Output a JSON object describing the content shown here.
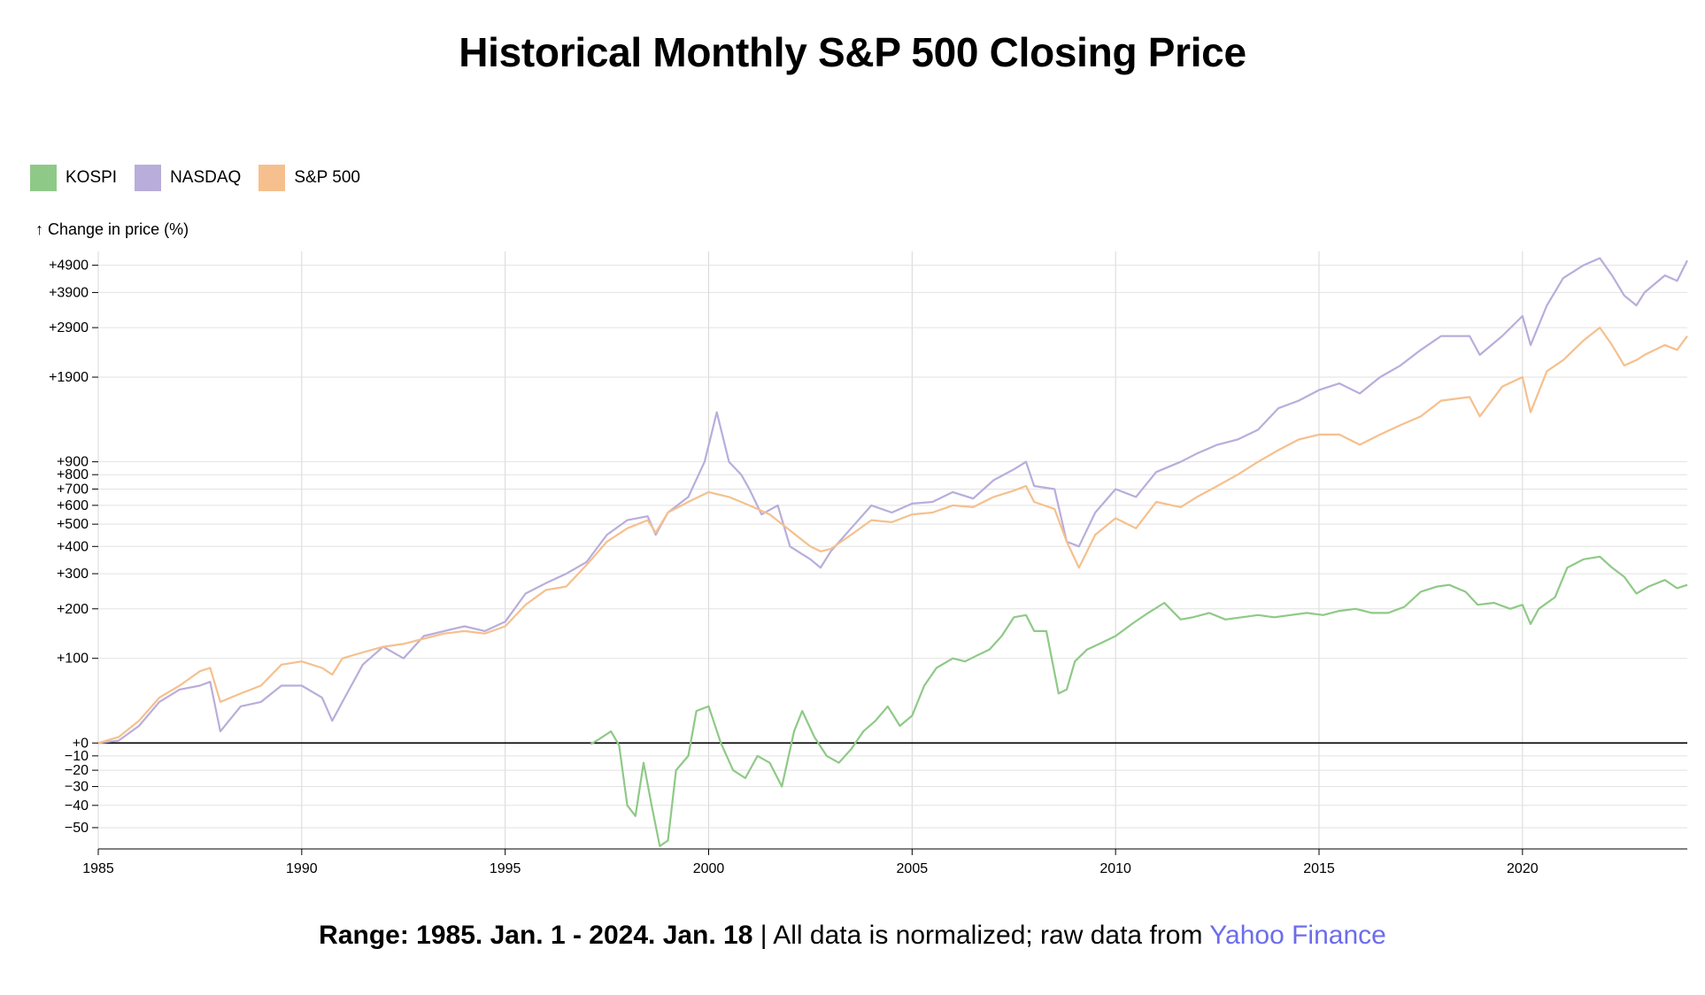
{
  "title": "Historical Monthly S&P 500 Closing Price",
  "legend": [
    {
      "name": "KOSPI",
      "color": "#8fc987"
    },
    {
      "name": "NASDAQ",
      "color": "#b9addb"
    },
    {
      "name": "S&P 500",
      "color": "#f5c08e"
    }
  ],
  "footer": {
    "range": "Range: 1985. Jan. 1 - 2024. Jan. 18",
    "separator": " | ",
    "note": "All data is normalized; raw data from ",
    "link": "Yahoo Finance"
  },
  "chart_data": {
    "type": "line",
    "title": "Historical Monthly S&P 500 Closing Price",
    "ylabel": "↑ Change in price (%)",
    "xlabel": "",
    "scale": "log",
    "xlim": [
      1985.0,
      2024.05
    ],
    "ylim": [
      -58,
      5500
    ],
    "grid": true,
    "legend_position": "top-left",
    "x_ticks": [
      1985,
      1990,
      1995,
      2000,
      2005,
      2010,
      2015,
      2020
    ],
    "y_ticks": [
      -50,
      -40,
      -30,
      -20,
      -10,
      0,
      100,
      200,
      300,
      400,
      500,
      600,
      700,
      800,
      900,
      1900,
      2900,
      3900,
      4900
    ],
    "y_tick_labels": [
      "−50",
      "−40",
      "−30",
      "−20",
      "−10",
      "+0",
      "+100",
      "+200",
      "+300",
      "+400",
      "+500",
      "+600",
      "+700",
      "+800",
      "+900",
      "+1900",
      "+2900",
      "+3900",
      "+4900"
    ],
    "series": [
      {
        "name": "KOSPI",
        "color": "#8fc987",
        "x": [
          1997.1,
          1997.3,
          1997.6,
          1997.8,
          1998.0,
          1998.2,
          1998.4,
          1998.6,
          1998.8,
          1999.0,
          1999.2,
          1999.5,
          1999.7,
          2000.0,
          2000.3,
          2000.6,
          2000.9,
          2001.2,
          2001.5,
          2001.8,
          2002.1,
          2002.3,
          2002.6,
          2002.9,
          2003.2,
          2003.5,
          2003.8,
          2004.1,
          2004.4,
          2004.7,
          2005.0,
          2005.3,
          2005.6,
          2006.0,
          2006.3,
          2006.6,
          2006.9,
          2007.2,
          2007.5,
          2007.8,
          2008.0,
          2008.3,
          2008.6,
          2008.8,
          2009.0,
          2009.3,
          2009.6,
          2010.0,
          2010.4,
          2010.8,
          2011.2,
          2011.6,
          2011.9,
          2012.3,
          2012.7,
          2013.1,
          2013.5,
          2013.9,
          2014.3,
          2014.7,
          2015.1,
          2015.5,
          2015.9,
          2016.3,
          2016.7,
          2017.1,
          2017.5,
          2017.9,
          2018.2,
          2018.6,
          2018.9,
          2019.3,
          2019.7,
          2020.0,
          2020.2,
          2020.4,
          2020.8,
          2021.1,
          2021.5,
          2021.9,
          2022.2,
          2022.5,
          2022.8,
          2023.1,
          2023.5,
          2023.8,
          2024.05
        ],
        "values": [
          -1,
          3,
          10,
          -2,
          -40,
          -45,
          -15,
          -40,
          -57,
          -55,
          -20,
          -10,
          30,
          35,
          0,
          -20,
          -25,
          -10,
          -15,
          -30,
          10,
          30,
          5,
          -10,
          -15,
          -5,
          10,
          20,
          35,
          15,
          25,
          60,
          85,
          100,
          95,
          105,
          115,
          140,
          180,
          185,
          150,
          150,
          50,
          55,
          95,
          115,
          125,
          140,
          165,
          190,
          215,
          175,
          180,
          190,
          175,
          180,
          185,
          180,
          185,
          190,
          185,
          195,
          200,
          190,
          190,
          205,
          245,
          260,
          265,
          245,
          210,
          215,
          200,
          210,
          165,
          200,
          230,
          320,
          350,
          360,
          320,
          290,
          240,
          260,
          280,
          255,
          265
        ]
      },
      {
        "name": "NASDAQ",
        "color": "#b9addb",
        "x": [
          1985.0,
          1985.5,
          1986.0,
          1986.5,
          1987.0,
          1987.5,
          1987.75,
          1988.0,
          1988.5,
          1989.0,
          1989.5,
          1990.0,
          1990.5,
          1990.75,
          1991.0,
          1991.5,
          1992.0,
          1992.5,
          1993.0,
          1993.5,
          1994.0,
          1994.5,
          1995.0,
          1995.5,
          1996.0,
          1996.5,
          1997.0,
          1997.5,
          1998.0,
          1998.5,
          1998.7,
          1999.0,
          1999.5,
          1999.9,
          2000.2,
          2000.5,
          2000.8,
          2001.0,
          2001.3,
          2001.7,
          2002.0,
          2002.5,
          2002.75,
          2003.0,
          2003.5,
          2004.0,
          2004.5,
          2005.0,
          2005.5,
          2006.0,
          2006.5,
          2007.0,
          2007.5,
          2007.8,
          2008.0,
          2008.5,
          2008.8,
          2009.1,
          2009.5,
          2010.0,
          2010.5,
          2011.0,
          2011.6,
          2012.0,
          2012.5,
          2013.0,
          2013.5,
          2014.0,
          2014.5,
          2015.0,
          2015.5,
          2016.0,
          2016.5,
          2017.0,
          2017.5,
          2018.0,
          2018.7,
          2018.95,
          2019.5,
          2020.0,
          2020.2,
          2020.6,
          2021.0,
          2021.5,
          2021.9,
          2022.2,
          2022.5,
          2022.8,
          2023.0,
          2023.5,
          2023.8,
          2024.05
        ],
        "values": [
          0,
          2,
          15,
          40,
          55,
          60,
          65,
          10,
          35,
          40,
          60,
          60,
          45,
          20,
          40,
          90,
          120,
          100,
          140,
          150,
          160,
          150,
          170,
          240,
          270,
          300,
          340,
          450,
          520,
          540,
          450,
          560,
          650,
          900,
          1400,
          900,
          800,
          700,
          550,
          600,
          400,
          350,
          320,
          380,
          480,
          600,
          560,
          610,
          620,
          680,
          640,
          760,
          840,
          900,
          720,
          700,
          420,
          400,
          560,
          700,
          650,
          820,
          900,
          970,
          1050,
          1100,
          1200,
          1450,
          1550,
          1700,
          1800,
          1650,
          1900,
          2100,
          2400,
          2700,
          2700,
          2300,
          2700,
          3200,
          2500,
          3500,
          4400,
          4900,
          5200,
          4500,
          3800,
          3500,
          3900,
          4500,
          4300,
          5100
        ]
      },
      {
        "name": "S&P 500",
        "color": "#f5c08e",
        "x": [
          1985.0,
          1985.5,
          1986.0,
          1986.5,
          1987.0,
          1987.5,
          1987.75,
          1988.0,
          1988.5,
          1989.0,
          1989.5,
          1990.0,
          1990.5,
          1990.75,
          1991.0,
          1991.5,
          1992.0,
          1992.5,
          1993.0,
          1993.5,
          1994.0,
          1994.5,
          1995.0,
          1995.5,
          1996.0,
          1996.5,
          1997.0,
          1997.5,
          1998.0,
          1998.5,
          1998.7,
          1999.0,
          1999.5,
          2000.0,
          2000.5,
          2001.0,
          2001.5,
          2002.0,
          2002.5,
          2002.75,
          2003.0,
          2003.5,
          2004.0,
          2004.5,
          2005.0,
          2005.5,
          2006.0,
          2006.5,
          2007.0,
          2007.5,
          2007.8,
          2008.0,
          2008.5,
          2008.8,
          2009.1,
          2009.5,
          2010.0,
          2010.5,
          2011.0,
          2011.6,
          2012.0,
          2012.5,
          2013.0,
          2013.5,
          2014.0,
          2014.5,
          2015.0,
          2015.5,
          2016.0,
          2016.5,
          2017.0,
          2017.5,
          2018.0,
          2018.7,
          2018.95,
          2019.5,
          2020.0,
          2020.2,
          2020.6,
          2021.0,
          2021.5,
          2021.9,
          2022.2,
          2022.5,
          2022.8,
          2023.0,
          2023.5,
          2023.8,
          2024.05
        ],
        "values": [
          0,
          5,
          20,
          45,
          60,
          80,
          85,
          40,
          50,
          60,
          90,
          95,
          85,
          75,
          100,
          110,
          120,
          125,
          135,
          145,
          150,
          145,
          160,
          210,
          250,
          260,
          330,
          420,
          480,
          520,
          460,
          560,
          620,
          680,
          650,
          600,
          550,
          470,
          400,
          380,
          390,
          450,
          520,
          510,
          550,
          560,
          600,
          590,
          650,
          690,
          720,
          620,
          580,
          420,
          320,
          450,
          530,
          480,
          620,
          590,
          650,
          720,
          800,
          900,
          1000,
          1100,
          1150,
          1150,
          1050,
          1150,
          1250,
          1350,
          1550,
          1600,
          1350,
          1750,
          1900,
          1400,
          2000,
          2200,
          2600,
          2900,
          2500,
          2100,
          2200,
          2300,
          2500,
          2400,
          2700
        ]
      }
    ]
  }
}
